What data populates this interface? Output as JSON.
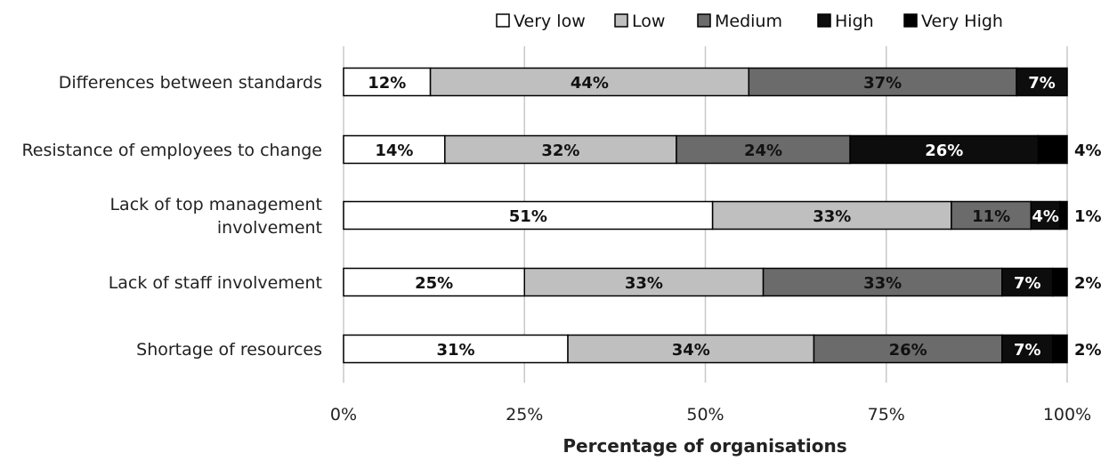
{
  "chart_data": {
    "type": "bar",
    "orientation": "horizontal",
    "stacked": true,
    "categories": [
      [
        "Differences between standards"
      ],
      [
        "Resistance of employees to change"
      ],
      [
        "Lack of top management",
        "involvement"
      ],
      [
        "Lack of staff involvement"
      ],
      [
        "Shortage of resources"
      ]
    ],
    "series": [
      {
        "name": "Very low",
        "color": "#ffffff",
        "values": [
          12,
          14,
          51,
          25,
          31
        ]
      },
      {
        "name": "Low",
        "color": "#bfbfbf",
        "values": [
          44,
          32,
          33,
          33,
          34
        ]
      },
      {
        "name": "Medium",
        "color": "#6b6b6b",
        "values": [
          37,
          24,
          11,
          33,
          26
        ]
      },
      {
        "name": "High",
        "color": "#0d0d0d",
        "values": [
          7,
          26,
          4,
          7,
          7
        ]
      },
      {
        "name": "Very High",
        "color": "#000000",
        "values": [
          0,
          4,
          1,
          2,
          2
        ]
      }
    ],
    "xlabel": "Percentage of organisations",
    "ylabel": "",
    "xlim": [
      0,
      100
    ],
    "xticks": [
      "0%",
      "25%",
      "50%",
      "75%",
      "100%"
    ],
    "grid": true,
    "legend_position": "top"
  }
}
